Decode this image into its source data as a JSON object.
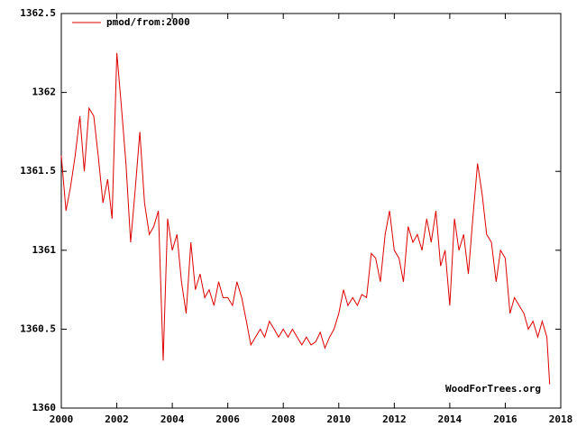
{
  "chart_data": {
    "type": "line",
    "x": [
      2000.0,
      2000.17,
      2000.33,
      2000.5,
      2000.67,
      2000.83,
      2001.0,
      2001.17,
      2001.33,
      2001.5,
      2001.67,
      2001.83,
      2002.0,
      2002.17,
      2002.33,
      2002.5,
      2002.67,
      2002.83,
      2003.0,
      2003.17,
      2003.33,
      2003.5,
      2003.67,
      2003.83,
      2004.0,
      2004.17,
      2004.33,
      2004.5,
      2004.67,
      2004.83,
      2005.0,
      2005.17,
      2005.33,
      2005.5,
      2005.67,
      2005.83,
      2006.0,
      2006.17,
      2006.33,
      2006.5,
      2006.67,
      2006.83,
      2007.0,
      2007.17,
      2007.33,
      2007.5,
      2007.67,
      2007.83,
      2008.0,
      2008.17,
      2008.33,
      2008.5,
      2008.67,
      2008.83,
      2009.0,
      2009.17,
      2009.33,
      2009.5,
      2009.67,
      2009.83,
      2010.0,
      2010.17,
      2010.33,
      2010.5,
      2010.67,
      2010.83,
      2011.0,
      2011.17,
      2011.33,
      2011.5,
      2011.67,
      2011.83,
      2012.0,
      2012.17,
      2012.33,
      2012.5,
      2012.67,
      2012.83,
      2013.0,
      2013.17,
      2013.33,
      2013.5,
      2013.67,
      2013.83,
      2014.0,
      2014.17,
      2014.33,
      2014.5,
      2014.67,
      2014.83,
      2015.0,
      2015.17,
      2015.33,
      2015.5,
      2015.67,
      2015.83,
      2016.0,
      2016.17,
      2016.33,
      2016.5,
      2016.67,
      2016.83,
      2017.0,
      2017.17,
      2017.33,
      2017.5,
      2017.6
    ],
    "series": [
      {
        "name": "pmod/from:2000",
        "color": "#dd0000",
        "values": [
          1361.6,
          1361.25,
          1361.4,
          1361.6,
          1361.85,
          1361.5,
          1361.9,
          1361.85,
          1361.6,
          1361.3,
          1361.45,
          1361.2,
          1362.25,
          1361.9,
          1361.55,
          1361.05,
          1361.4,
          1361.75,
          1361.3,
          1361.1,
          1361.15,
          1361.25,
          1360.3,
          1361.2,
          1361.0,
          1361.1,
          1360.8,
          1360.6,
          1361.05,
          1360.75,
          1360.85,
          1360.7,
          1360.75,
          1360.65,
          1360.8,
          1360.7,
          1360.7,
          1360.65,
          1360.8,
          1360.7,
          1360.55,
          1360.4,
          1360.45,
          1360.5,
          1360.45,
          1360.55,
          1360.5,
          1360.45,
          1360.5,
          1360.45,
          1360.5,
          1360.45,
          1360.4,
          1360.45,
          1360.4,
          1360.42,
          1360.48,
          1360.38,
          1360.45,
          1360.5,
          1360.6,
          1360.75,
          1360.65,
          1360.7,
          1360.65,
          1360.72,
          1360.7,
          1360.98,
          1360.95,
          1360.8,
          1361.1,
          1361.25,
          1361.0,
          1360.95,
          1360.8,
          1361.15,
          1361.05,
          1361.1,
          1361.0,
          1361.2,
          1361.05,
          1361.25,
          1360.9,
          1361.0,
          1360.65,
          1361.2,
          1361.0,
          1361.1,
          1360.85,
          1361.2,
          1361.55,
          1361.35,
          1361.1,
          1361.05,
          1360.8,
          1361.0,
          1360.95,
          1360.6,
          1360.7,
          1360.65,
          1360.6,
          1360.5,
          1360.55,
          1360.45,
          1360.55,
          1360.45,
          1360.15
        ]
      }
    ],
    "xlim": [
      2000,
      2018
    ],
    "xticks": [
      2000,
      2002,
      2004,
      2006,
      2008,
      2010,
      2012,
      2014,
      2016,
      2018
    ],
    "ylim": [
      1360,
      1362.5
    ],
    "yticks": [
      1360,
      1360.5,
      1361,
      1361.5,
      1362,
      1362.5
    ],
    "legend": "top-left",
    "annotation": "WoodForTrees.org"
  }
}
